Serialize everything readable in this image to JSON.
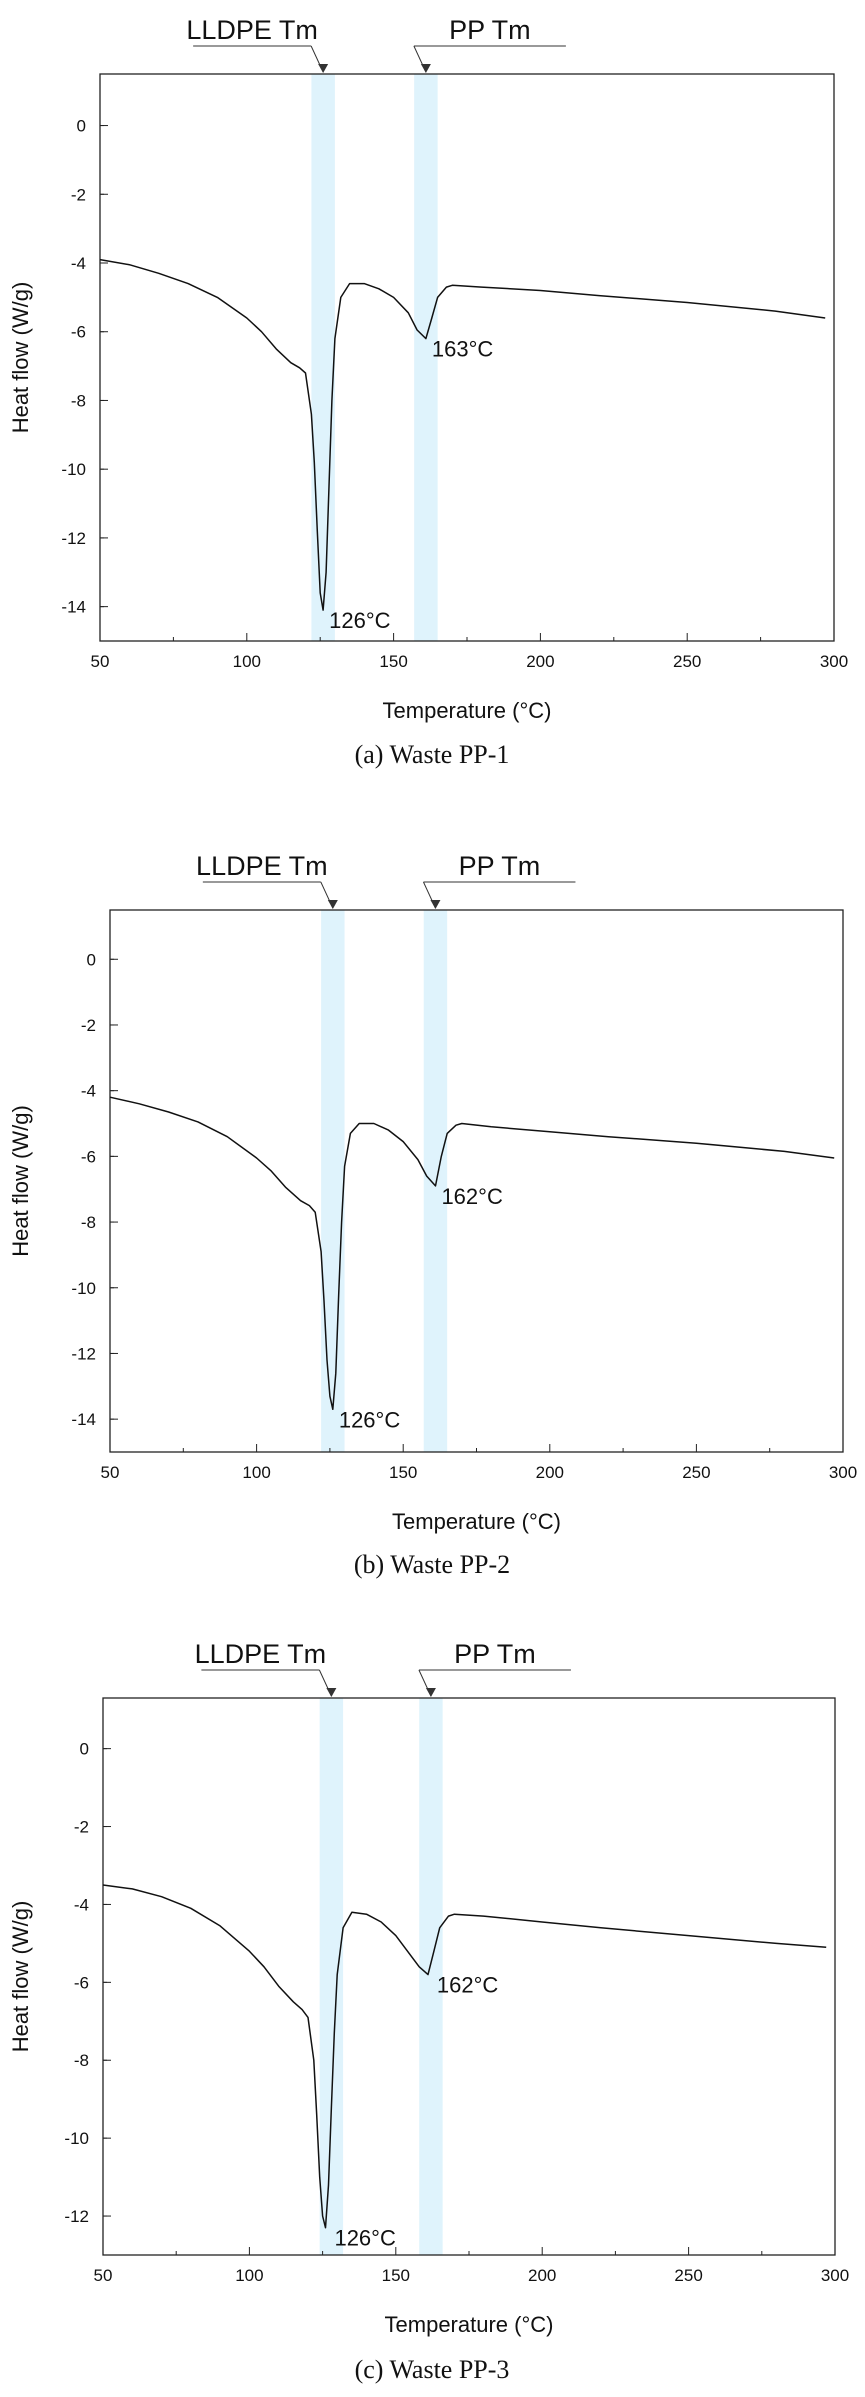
{
  "chart_data": [
    {
      "type": "line",
      "caption": "(a) Waste PP-1",
      "xlabel": "Temperature (°C)",
      "ylabel": "Heat flow (W/g)",
      "xlim": [
        50,
        300
      ],
      "ylim": [
        -15,
        1.5
      ],
      "xticks": [
        50,
        100,
        150,
        200,
        250,
        300
      ],
      "yticks": [
        0,
        -2,
        -4,
        -6,
        -8,
        -10,
        -12,
        -14
      ],
      "bands": [
        {
          "label": "LLDPE Tm",
          "x0": 122,
          "x1": 130
        },
        {
          "label": "PP Tm",
          "x0": 157,
          "x1": 165
        }
      ],
      "peak_labels": [
        {
          "text": "126°C",
          "x": 126,
          "y": -14.1
        },
        {
          "text": "163°C",
          "x": 161,
          "y": -6.2
        }
      ],
      "series": [
        {
          "x": [
            50,
            60,
            70,
            80,
            90,
            100,
            105,
            110,
            115,
            118,
            120,
            122,
            123,
            124,
            125,
            126,
            127,
            128,
            129,
            130,
            132,
            135,
            140,
            145,
            150,
            155,
            158,
            161,
            163,
            165,
            168,
            170,
            180,
            200,
            220,
            250,
            280,
            297
          ],
          "y": [
            -3.9,
            -4.05,
            -4.3,
            -4.6,
            -5.0,
            -5.6,
            -6.0,
            -6.5,
            -6.9,
            -7.05,
            -7.2,
            -8.4,
            -9.8,
            -11.8,
            -13.6,
            -14.1,
            -13.0,
            -10.5,
            -8.0,
            -6.2,
            -5.0,
            -4.6,
            -4.6,
            -4.75,
            -5.0,
            -5.45,
            -5.95,
            -6.2,
            -5.6,
            -5.0,
            -4.7,
            -4.65,
            -4.7,
            -4.8,
            -4.95,
            -5.15,
            -5.4,
            -5.6
          ]
        }
      ]
    },
    {
      "type": "line",
      "caption": "(b) Waste PP-2",
      "xlabel": "Temperature (°C)",
      "ylabel": "Heat flow (W/g)",
      "xlim": [
        50,
        300
      ],
      "ylim": [
        -15,
        1.5
      ],
      "xticks": [
        50,
        100,
        150,
        200,
        250,
        300
      ],
      "yticks": [
        0,
        -2,
        -4,
        -6,
        -8,
        -10,
        -12,
        -14
      ],
      "bands": [
        {
          "label": "LLDPE Tm",
          "x0": 122,
          "x1": 130
        },
        {
          "label": "PP Tm",
          "x0": 157,
          "x1": 165
        }
      ],
      "peak_labels": [
        {
          "text": "126°C",
          "x": 126,
          "y": -13.7
        },
        {
          "text": "162°C",
          "x": 161,
          "y": -6.9
        }
      ],
      "series": [
        {
          "x": [
            50,
            60,
            70,
            80,
            90,
            100,
            105,
            110,
            115,
            118,
            120,
            122,
            123,
            124,
            125,
            126,
            127,
            128,
            129,
            130,
            132,
            135,
            140,
            145,
            150,
            155,
            158,
            161,
            163,
            165,
            168,
            170,
            180,
            200,
            220,
            250,
            280,
            297
          ],
          "y": [
            -4.2,
            -4.4,
            -4.65,
            -4.95,
            -5.4,
            -6.05,
            -6.45,
            -6.95,
            -7.35,
            -7.5,
            -7.7,
            -8.9,
            -10.4,
            -12.2,
            -13.3,
            -13.7,
            -12.6,
            -10.2,
            -8.0,
            -6.3,
            -5.3,
            -5.0,
            -5.0,
            -5.2,
            -5.55,
            -6.1,
            -6.6,
            -6.9,
            -6.0,
            -5.3,
            -5.05,
            -5.0,
            -5.1,
            -5.25,
            -5.4,
            -5.6,
            -5.85,
            -6.05
          ]
        }
      ]
    },
    {
      "type": "line",
      "caption": "(c) Waste PP-3",
      "xlabel": "Temperature (°C)",
      "ylabel": "Heat flow (W/g)",
      "xlim": [
        50,
        300
      ],
      "ylim": [
        -13,
        1.3
      ],
      "xticks": [
        50,
        100,
        150,
        200,
        250,
        300
      ],
      "yticks": [
        0,
        -2,
        -4,
        -6,
        -8,
        -10,
        -12
      ],
      "bands": [
        {
          "label": "LLDPE Tm",
          "x0": 124,
          "x1": 132
        },
        {
          "label": "PP Tm",
          "x0": 158,
          "x1": 166
        }
      ],
      "peak_labels": [
        {
          "text": "126°C",
          "x": 127,
          "y": -12.3
        },
        {
          "text": "162°C",
          "x": 162,
          "y": -5.8
        }
      ],
      "series": [
        {
          "x": [
            50,
            60,
            70,
            80,
            90,
            100,
            105,
            110,
            115,
            118,
            120,
            122,
            123,
            124,
            125,
            126,
            127,
            128,
            129,
            130,
            132,
            135,
            140,
            145,
            150,
            155,
            158,
            161,
            163,
            165,
            168,
            170,
            180,
            200,
            220,
            250,
            280,
            297
          ],
          "y": [
            -3.5,
            -3.6,
            -3.8,
            -4.1,
            -4.55,
            -5.2,
            -5.6,
            -6.1,
            -6.5,
            -6.7,
            -6.9,
            -8.0,
            -9.4,
            -11.0,
            -12.0,
            -12.3,
            -11.2,
            -9.2,
            -7.3,
            -5.8,
            -4.6,
            -4.2,
            -4.25,
            -4.45,
            -4.8,
            -5.3,
            -5.6,
            -5.8,
            -5.2,
            -4.6,
            -4.3,
            -4.25,
            -4.3,
            -4.45,
            -4.6,
            -4.8,
            -5.0,
            -5.1
          ]
        }
      ]
    }
  ]
}
